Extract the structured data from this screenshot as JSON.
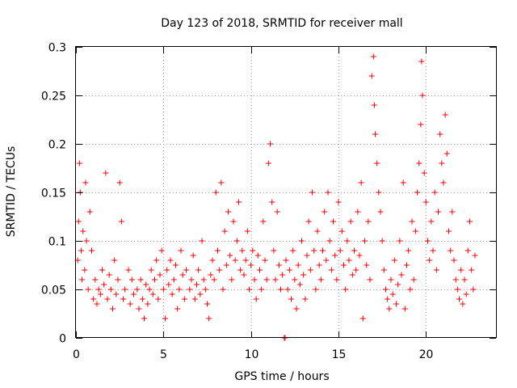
{
  "chart_data": {
    "type": "scatter",
    "title": "Day 123 of 2018, SRMTID for receiver mall",
    "xlabel": "GPS time / hours",
    "ylabel": "SRMTID / TECUs",
    "xlim": [
      0,
      24
    ],
    "ylim": [
      0,
      0.3
    ],
    "xticks": [
      0,
      5,
      10,
      15,
      20
    ],
    "xtick_labels": [
      "0",
      "5",
      "10",
      "15",
      "20"
    ],
    "yticks": [
      0,
      0.05,
      0.1,
      0.15,
      0.2,
      0.25,
      0.3
    ],
    "ytick_labels": [
      "0",
      "0.05",
      "0.1",
      "0.15",
      "0.2",
      "0.25",
      "0.3"
    ],
    "grid": true,
    "marker": "+",
    "color": "#ff0000",
    "series": [
      {
        "name": "SRMTID",
        "data": [
          [
            0.1,
            0.08
          ],
          [
            0.15,
            0.12
          ],
          [
            0.2,
            0.18
          ],
          [
            0.25,
            0.15
          ],
          [
            0.3,
            0.09
          ],
          [
            0.35,
            0.06
          ],
          [
            0.4,
            0.11
          ],
          [
            0.5,
            0.07
          ],
          [
            0.55,
            0.16
          ],
          [
            0.6,
            0.1
          ],
          [
            0.7,
            0.05
          ],
          [
            0.8,
            0.13
          ],
          [
            0.9,
            0.09
          ],
          [
            1.0,
            0.04
          ],
          [
            1.1,
            0.06
          ],
          [
            1.2,
            0.035
          ],
          [
            1.3,
            0.05
          ],
          [
            1.4,
            0.045
          ],
          [
            1.5,
            0.07
          ],
          [
            1.6,
            0.055
          ],
          [
            1.7,
            0.17
          ],
          [
            1.8,
            0.04
          ],
          [
            1.9,
            0.065
          ],
          [
            2.0,
            0.05
          ],
          [
            2.1,
            0.03
          ],
          [
            2.2,
            0.08
          ],
          [
            2.3,
            0.045
          ],
          [
            2.4,
            0.06
          ],
          [
            2.5,
            0.16
          ],
          [
            2.6,
            0.12
          ],
          [
            2.7,
            0.04
          ],
          [
            2.8,
            0.05
          ],
          [
            3.0,
            0.07
          ],
          [
            3.1,
            0.035
          ],
          [
            3.2,
            0.06
          ],
          [
            3.3,
            0.045
          ],
          [
            3.5,
            0.05
          ],
          [
            3.6,
            0.03
          ],
          [
            3.7,
            0.06
          ],
          [
            3.8,
            0.04
          ],
          [
            3.9,
            0.02
          ],
          [
            4.0,
            0.055
          ],
          [
            4.1,
            0.035
          ],
          [
            4.2,
            0.05
          ],
          [
            4.3,
            0.07
          ],
          [
            4.4,
            0.045
          ],
          [
            4.5,
            0.06
          ],
          [
            4.6,
            0.08
          ],
          [
            4.7,
            0.04
          ],
          [
            4.8,
            0.065
          ],
          [
            4.9,
            0.09
          ],
          [
            5.0,
            0.05
          ],
          [
            5.1,
            0.02
          ],
          [
            5.2,
            0.07
          ],
          [
            5.3,
            0.055
          ],
          [
            5.4,
            0.08
          ],
          [
            5.5,
            0.045
          ],
          [
            5.6,
            0.06
          ],
          [
            5.7,
            0.075
          ],
          [
            5.8,
            0.03
          ],
          [
            5.9,
            0.05
          ],
          [
            6.0,
            0.09
          ],
          [
            6.1,
            0.065
          ],
          [
            6.2,
            0.04
          ],
          [
            6.3,
            0.07
          ],
          [
            6.5,
            0.05
          ],
          [
            6.6,
            0.06
          ],
          [
            6.7,
            0.085
          ],
          [
            6.8,
            0.04
          ],
          [
            6.9,
            0.055
          ],
          [
            7.0,
            0.07
          ],
          [
            7.1,
            0.045
          ],
          [
            7.2,
            0.1
          ],
          [
            7.3,
            0.06
          ],
          [
            7.4,
            0.05
          ],
          [
            7.5,
            0.035
          ],
          [
            7.6,
            0.02
          ],
          [
            7.7,
            0.065
          ],
          [
            7.8,
            0.08
          ],
          [
            7.9,
            0.06
          ],
          [
            8.0,
            0.15
          ],
          [
            8.1,
            0.09
          ],
          [
            8.2,
            0.07
          ],
          [
            8.3,
            0.16
          ],
          [
            8.4,
            0.05
          ],
          [
            8.5,
            0.11
          ],
          [
            8.6,
            0.075
          ],
          [
            8.7,
            0.13
          ],
          [
            8.8,
            0.085
          ],
          [
            8.9,
            0.06
          ],
          [
            9.0,
            0.12
          ],
          [
            9.1,
            0.08
          ],
          [
            9.2,
            0.1
          ],
          [
            9.3,
            0.14
          ],
          [
            9.4,
            0.07
          ],
          [
            9.5,
            0.09
          ],
          [
            9.6,
            0.065
          ],
          [
            9.7,
            0.08
          ],
          [
            9.8,
            0.11
          ],
          [
            9.9,
            0.05
          ],
          [
            10.0,
            0.075
          ],
          [
            10.1,
            0.09
          ],
          [
            10.2,
            0.06
          ],
          [
            10.3,
            0.04
          ],
          [
            10.4,
            0.085
          ],
          [
            10.5,
            0.07
          ],
          [
            10.6,
            0.05
          ],
          [
            10.7,
            0.12
          ],
          [
            10.8,
            0.08
          ],
          [
            10.9,
            0.06
          ],
          [
            11.0,
            0.18
          ],
          [
            11.1,
            0.2
          ],
          [
            11.2,
            0.14
          ],
          [
            11.3,
            0.09
          ],
          [
            11.4,
            0.06
          ],
          [
            11.5,
            0.13
          ],
          [
            11.6,
            0.075
          ],
          [
            11.7,
            0.05
          ],
          [
            11.8,
            0.065
          ],
          [
            11.9,
            0.0
          ],
          [
            11.95,
            0.0
          ],
          [
            12.0,
            0.08
          ],
          [
            12.1,
            0.05
          ],
          [
            12.2,
            0.07
          ],
          [
            12.3,
            0.04
          ],
          [
            12.4,
            0.09
          ],
          [
            12.5,
            0.06
          ],
          [
            12.6,
            0.03
          ],
          [
            12.7,
            0.075
          ],
          [
            12.8,
            0.055
          ],
          [
            12.9,
            0.1
          ],
          [
            13.0,
            0.065
          ],
          [
            13.1,
            0.04
          ],
          [
            13.2,
            0.085
          ],
          [
            13.3,
            0.12
          ],
          [
            13.4,
            0.07
          ],
          [
            13.5,
            0.15
          ],
          [
            13.6,
            0.09
          ],
          [
            13.7,
            0.05
          ],
          [
            13.8,
            0.11
          ],
          [
            13.9,
            0.075
          ],
          [
            14.0,
            0.06
          ],
          [
            14.1,
            0.09
          ],
          [
            14.2,
            0.13
          ],
          [
            14.3,
            0.08
          ],
          [
            14.4,
            0.15
          ],
          [
            14.5,
            0.1
          ],
          [
            14.6,
            0.07
          ],
          [
            14.7,
            0.12
          ],
          [
            14.8,
            0.085
          ],
          [
            14.9,
            0.06
          ],
          [
            15.0,
            0.14
          ],
          [
            15.1,
            0.09
          ],
          [
            15.2,
            0.11
          ],
          [
            15.3,
            0.075
          ],
          [
            15.4,
            0.05
          ],
          [
            15.5,
            0.1
          ],
          [
            15.6,
            0.08
          ],
          [
            15.7,
            0.12
          ],
          [
            15.8,
            0.065
          ],
          [
            15.9,
            0.09
          ],
          [
            16.0,
            0.07
          ],
          [
            16.1,
            0.13
          ],
          [
            16.2,
            0.085
          ],
          [
            16.3,
            0.16
          ],
          [
            16.4,
            0.02
          ],
          [
            16.5,
            0.1
          ],
          [
            16.6,
            0.075
          ],
          [
            16.7,
            0.12
          ],
          [
            16.8,
            0.06
          ],
          [
            16.9,
            0.27
          ],
          [
            17.0,
            0.29
          ],
          [
            17.05,
            0.24
          ],
          [
            17.1,
            0.21
          ],
          [
            17.2,
            0.18
          ],
          [
            17.3,
            0.15
          ],
          [
            17.4,
            0.13
          ],
          [
            17.5,
            0.1
          ],
          [
            17.6,
            0.07
          ],
          [
            17.7,
            0.05
          ],
          [
            17.8,
            0.04
          ],
          [
            17.9,
            0.03
          ],
          [
            18.0,
            0.06
          ],
          [
            18.1,
            0.045
          ],
          [
            18.2,
            0.08
          ],
          [
            18.3,
            0.035
          ],
          [
            18.4,
            0.055
          ],
          [
            18.5,
            0.1
          ],
          [
            18.6,
            0.065
          ],
          [
            18.7,
            0.16
          ],
          [
            18.8,
            0.03
          ],
          [
            18.9,
            0.075
          ],
          [
            19.0,
            0.09
          ],
          [
            19.1,
            0.05
          ],
          [
            19.2,
            0.12
          ],
          [
            19.3,
            0.06
          ],
          [
            19.4,
            0.11
          ],
          [
            19.5,
            0.15
          ],
          [
            19.6,
            0.18
          ],
          [
            19.7,
            0.22
          ],
          [
            19.75,
            0.285
          ],
          [
            19.8,
            0.25
          ],
          [
            19.9,
            0.17
          ],
          [
            20.0,
            0.14
          ],
          [
            20.1,
            0.1
          ],
          [
            20.2,
            0.08
          ],
          [
            20.3,
            0.12
          ],
          [
            20.4,
            0.09
          ],
          [
            20.5,
            0.15
          ],
          [
            20.6,
            0.07
          ],
          [
            20.7,
            0.13
          ],
          [
            20.8,
            0.21
          ],
          [
            20.9,
            0.18
          ],
          [
            21.0,
            0.16
          ],
          [
            21.1,
            0.23
          ],
          [
            21.2,
            0.19
          ],
          [
            21.3,
            0.11
          ],
          [
            21.4,
            0.09
          ],
          [
            21.5,
            0.13
          ],
          [
            21.6,
            0.08
          ],
          [
            21.7,
            0.06
          ],
          [
            21.8,
            0.05
          ],
          [
            21.9,
            0.04
          ],
          [
            22.0,
            0.07
          ],
          [
            22.1,
            0.035
          ],
          [
            22.2,
            0.06
          ],
          [
            22.3,
            0.045
          ],
          [
            22.4,
            0.09
          ],
          [
            22.5,
            0.12
          ],
          [
            22.6,
            0.07
          ],
          [
            22.7,
            0.05
          ],
          [
            22.8,
            0.085
          ]
        ]
      }
    ]
  }
}
